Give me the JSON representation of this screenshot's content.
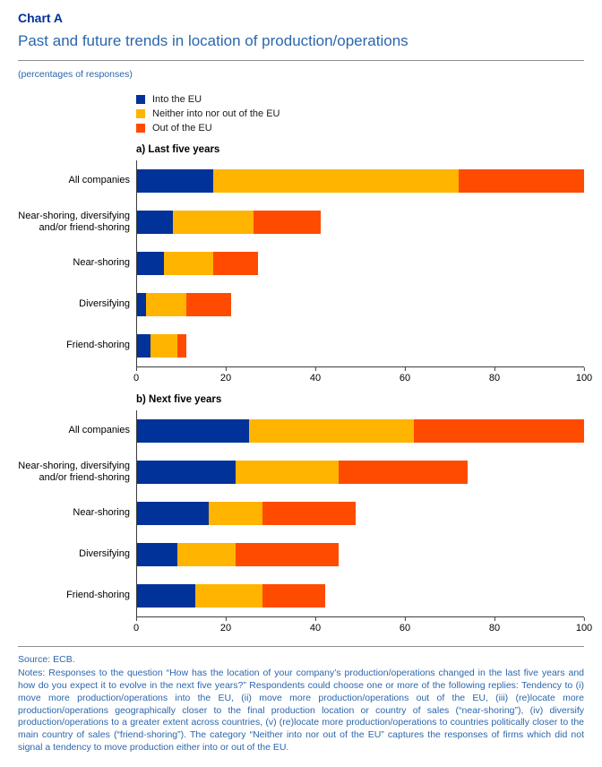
{
  "header": {
    "chart_label": "Chart A",
    "title": "Past and future trends in location of production/operations",
    "unit_note": "(percentages of responses)"
  },
  "legend": [
    {
      "label": "Into the EU",
      "color": "#003299"
    },
    {
      "label": "Neither into nor out of the EU",
      "color": "#FFB400"
    },
    {
      "label": "Out of the EU",
      "color": "#FF4B00"
    }
  ],
  "chart_data": [
    {
      "type": "bar",
      "orientation": "horizontal",
      "title": "a) Last five years",
      "categories": [
        "All companies",
        "Near-shoring, diversifying and/or friend-shoring",
        "Near-shoring",
        "Diversifying",
        "Friend-shoring"
      ],
      "series": [
        {
          "name": "Into the EU",
          "color": "#003299",
          "values": [
            17,
            8,
            6,
            2,
            3
          ]
        },
        {
          "name": "Neither into nor out of the EU",
          "color": "#FFB400",
          "values": [
            55,
            18,
            11,
            9,
            6
          ]
        },
        {
          "name": "Out of the EU",
          "color": "#FF4B00",
          "values": [
            28,
            15,
            10,
            10,
            2
          ]
        }
      ],
      "xlim": [
        0,
        100
      ],
      "xticks": [
        0,
        20,
        40,
        60,
        80,
        100
      ],
      "grid": false,
      "legend_position": "top-left"
    },
    {
      "type": "bar",
      "orientation": "horizontal",
      "title": "b) Next five years",
      "categories": [
        "All companies",
        "Near-shoring, diversifying and/or friend-shoring",
        "Near-shoring",
        "Diversifying",
        "Friend-shoring"
      ],
      "series": [
        {
          "name": "Into the EU",
          "color": "#003299",
          "values": [
            25,
            22,
            16,
            9,
            13
          ]
        },
        {
          "name": "Neither into nor out of the EU",
          "color": "#FFB400",
          "values": [
            37,
            23,
            12,
            13,
            15
          ]
        },
        {
          "name": "Out of the EU",
          "color": "#FF4B00",
          "values": [
            38,
            29,
            21,
            23,
            14
          ]
        }
      ],
      "xlim": [
        0,
        100
      ],
      "xticks": [
        0,
        20,
        40,
        60,
        80,
        100
      ],
      "grid": false,
      "legend_position": "none"
    }
  ],
  "footer": {
    "source": "Source: ECB.",
    "notes": "Notes: Responses to the question “How has the location of your company’s production/operations changed in the last five years and how do you expect it to evolve in the next five years?” Respondents could choose one or more of the following replies: Tendency to (i) move more production/operations into the EU, (ii) move more production/operations out of the EU, (iii) (re)locate more production/operations geographically closer to the final production location or country of sales (“near-shoring”), (iv) diversify production/operations to a greater extent across countries, (v) (re)locate more production/operations to countries politically closer to the main country of sales (“friend-shoring”). The category “Neither into nor out of the EU” captures the responses of firms which did not signal a tendency to move production either into or out of the EU."
  }
}
